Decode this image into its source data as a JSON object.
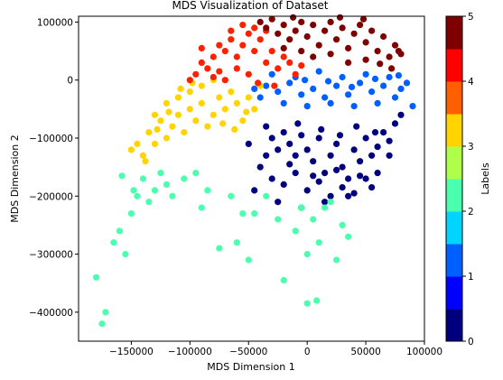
{
  "chart_data": {
    "type": "scatter",
    "title": "MDS Visualization of Dataset",
    "xlabel": "MDS Dimension 1",
    "ylabel": "MDS Dimension 2",
    "xlim": [
      -195000,
      100000
    ],
    "ylim": [
      -450000,
      110000
    ],
    "xticks": [
      -150000,
      -100000,
      -50000,
      0,
      50000,
      100000
    ],
    "yticks": [
      100000,
      0,
      -100000,
      -200000,
      -300000,
      -400000
    ],
    "grid": false,
    "colorbar": {
      "label": "Labels",
      "range": [
        0,
        5
      ],
      "ticks": [
        0,
        1,
        2,
        3,
        4,
        5
      ],
      "colors": [
        "#00007f",
        "#0000ff",
        "#005fff",
        "#00d4ff",
        "#4affad",
        "#adff4a",
        "#ffd400",
        "#ff5f00",
        "#ff0000",
        "#7f0000"
      ]
    },
    "series": [
      {
        "label_value": 0,
        "color": "#00007f",
        "points": [
          [
            -35000,
            -80000
          ],
          [
            -30000,
            -100000
          ],
          [
            -25000,
            -120000
          ],
          [
            -20000,
            -90000
          ],
          [
            -15000,
            -110000
          ],
          [
            -10000,
            -130000
          ],
          [
            -5000,
            -95000
          ],
          [
            0,
            -120000
          ],
          [
            5000,
            -140000
          ],
          [
            10000,
            -100000
          ],
          [
            15000,
            -160000
          ],
          [
            20000,
            -130000
          ],
          [
            25000,
            -110000
          ],
          [
            30000,
            -150000
          ],
          [
            35000,
            -170000
          ],
          [
            40000,
            -120000
          ],
          [
            45000,
            -140000
          ],
          [
            50000,
            -100000
          ],
          [
            55000,
            -130000
          ],
          [
            60000,
            -115000
          ],
          [
            65000,
            -90000
          ],
          [
            70000,
            -105000
          ],
          [
            75000,
            -75000
          ],
          [
            80000,
            -60000
          ],
          [
            -40000,
            -150000
          ],
          [
            -30000,
            -170000
          ],
          [
            -20000,
            -180000
          ],
          [
            -10000,
            -160000
          ],
          [
            0,
            -190000
          ],
          [
            10000,
            -175000
          ],
          [
            20000,
            -200000
          ],
          [
            30000,
            -185000
          ],
          [
            40000,
            -195000
          ],
          [
            50000,
            -170000
          ],
          [
            60000,
            -160000
          ],
          [
            -45000,
            -190000
          ],
          [
            -25000,
            -210000
          ],
          [
            -5000,
            -220000
          ],
          [
            15000,
            -210000
          ],
          [
            35000,
            -200000
          ],
          [
            -35000,
            -130000
          ],
          [
            -15000,
            -145000
          ],
          [
            5000,
            -165000
          ],
          [
            25000,
            -155000
          ],
          [
            45000,
            -165000
          ],
          [
            55000,
            -185000
          ],
          [
            -50000,
            -110000
          ],
          [
            70000,
            -130000
          ],
          [
            -8000,
            -75000
          ],
          [
            12000,
            -85000
          ],
          [
            28000,
            -95000
          ],
          [
            42000,
            -80000
          ],
          [
            58000,
            -90000
          ]
        ]
      },
      {
        "label_value": 1.25,
        "color": "#005fff",
        "points": [
          [
            -35000,
            -10000
          ],
          [
            -25000,
            -20000
          ],
          [
            -15000,
            -5000
          ],
          [
            -5000,
            -25000
          ],
          [
            5000,
            -15000
          ],
          [
            15000,
            -30000
          ],
          [
            25000,
            -10000
          ],
          [
            35000,
            -25000
          ],
          [
            45000,
            -5000
          ],
          [
            55000,
            -20000
          ],
          [
            65000,
            -10000
          ],
          [
            75000,
            -30000
          ],
          [
            -30000,
            10000
          ],
          [
            -10000,
            5000
          ],
          [
            10000,
            15000
          ],
          [
            30000,
            5000
          ],
          [
            50000,
            10000
          ],
          [
            70000,
            5000
          ],
          [
            80000,
            -15000
          ],
          [
            85000,
            -5000
          ],
          [
            -20000,
            -40000
          ],
          [
            0,
            -45000
          ],
          [
            20000,
            -40000
          ],
          [
            40000,
            -45000
          ],
          [
            60000,
            -40000
          ],
          [
            -40000,
            -30000
          ],
          [
            90000,
            -45000
          ],
          [
            -2000,
            0
          ],
          [
            18000,
            -2000
          ],
          [
            38000,
            -12000
          ],
          [
            58000,
            2000
          ],
          [
            78000,
            8000
          ],
          [
            -45000,
            -15000
          ]
        ]
      },
      {
        "label_value": 2.1,
        "color": "#4affad",
        "points": [
          [
            -175000,
            -420000
          ],
          [
            -180000,
            -340000
          ],
          [
            -172000,
            -400000
          ],
          [
            -165000,
            -280000
          ],
          [
            -160000,
            -260000
          ],
          [
            -155000,
            -300000
          ],
          [
            -150000,
            -230000
          ],
          [
            -145000,
            -200000
          ],
          [
            -140000,
            -170000
          ],
          [
            -135000,
            -210000
          ],
          [
            -130000,
            -190000
          ],
          [
            -125000,
            -160000
          ],
          [
            -120000,
            -180000
          ],
          [
            -115000,
            -200000
          ],
          [
            -105000,
            -170000
          ],
          [
            -95000,
            -160000
          ],
          [
            -85000,
            -190000
          ],
          [
            -75000,
            -290000
          ],
          [
            -60000,
            -280000
          ],
          [
            -50000,
            -310000
          ],
          [
            -45000,
            -230000
          ],
          [
            -35000,
            -200000
          ],
          [
            -25000,
            -240000
          ],
          [
            -20000,
            -345000
          ],
          [
            -10000,
            -260000
          ],
          [
            -5000,
            -220000
          ],
          [
            0,
            -300000
          ],
          [
            5000,
            -240000
          ],
          [
            10000,
            -280000
          ],
          [
            15000,
            -220000
          ],
          [
            20000,
            -210000
          ],
          [
            25000,
            -310000
          ],
          [
            30000,
            -250000
          ],
          [
            35000,
            -270000
          ],
          [
            -90000,
            -220000
          ],
          [
            -65000,
            -200000
          ],
          [
            -55000,
            -230000
          ],
          [
            0,
            -385000
          ],
          [
            8000,
            -380000
          ],
          [
            -158000,
            -165000
          ],
          [
            -148000,
            -190000
          ]
        ]
      },
      {
        "label_value": 3.1,
        "color": "#ffd400",
        "points": [
          [
            -145000,
            -110000
          ],
          [
            -140000,
            -130000
          ],
          [
            -135000,
            -90000
          ],
          [
            -130000,
            -110000
          ],
          [
            -125000,
            -70000
          ],
          [
            -120000,
            -100000
          ],
          [
            -115000,
            -80000
          ],
          [
            -110000,
            -60000
          ],
          [
            -105000,
            -90000
          ],
          [
            -100000,
            -50000
          ],
          [
            -95000,
            -70000
          ],
          [
            -90000,
            -40000
          ],
          [
            -85000,
            -80000
          ],
          [
            -80000,
            -60000
          ],
          [
            -75000,
            -30000
          ],
          [
            -70000,
            -50000
          ],
          [
            -65000,
            -20000
          ],
          [
            -60000,
            -40000
          ],
          [
            -55000,
            -70000
          ],
          [
            -50000,
            -30000
          ],
          [
            -45000,
            -50000
          ],
          [
            -40000,
            -10000
          ],
          [
            -100000,
            -20000
          ],
          [
            -110000,
            -30000
          ],
          [
            -120000,
            -40000
          ],
          [
            -130000,
            -60000
          ],
          [
            -90000,
            -10000
          ],
          [
            -80000,
            0
          ],
          [
            -150000,
            -120000
          ],
          [
            -138000,
            -140000
          ],
          [
            -128000,
            -85000
          ],
          [
            -118000,
            -55000
          ],
          [
            -108000,
            -15000
          ],
          [
            -98000,
            -5000
          ],
          [
            -72000,
            -75000
          ],
          [
            -62000,
            -85000
          ],
          [
            -52000,
            -55000
          ]
        ]
      },
      {
        "label_value": 4.1,
        "color": "#ff2000",
        "points": [
          [
            -100000,
            0
          ],
          [
            -95000,
            10000
          ],
          [
            -90000,
            30000
          ],
          [
            -85000,
            20000
          ],
          [
            -80000,
            40000
          ],
          [
            -75000,
            60000
          ],
          [
            -70000,
            50000
          ],
          [
            -65000,
            70000
          ],
          [
            -60000,
            40000
          ],
          [
            -55000,
            60000
          ],
          [
            -50000,
            80000
          ],
          [
            -45000,
            50000
          ],
          [
            -40000,
            70000
          ],
          [
            -35000,
            30000
          ],
          [
            -30000,
            50000
          ],
          [
            -25000,
            20000
          ],
          [
            -20000,
            40000
          ],
          [
            -15000,
            30000
          ],
          [
            -10000,
            10000
          ],
          [
            -5000,
            25000
          ],
          [
            -50000,
            10000
          ],
          [
            -60000,
            20000
          ],
          [
            -70000,
            0
          ],
          [
            -80000,
            5000
          ],
          [
            -45000,
            90000
          ],
          [
            -55000,
            95000
          ],
          [
            -65000,
            85000
          ],
          [
            -35000,
            85000
          ],
          [
            -90000,
            55000
          ],
          [
            -75000,
            15000
          ],
          [
            -42000,
            -5000
          ],
          [
            -28000,
            -10000
          ]
        ]
      },
      {
        "label_value": 4.9,
        "color": "#7f0000",
        "points": [
          [
            -40000,
            100000
          ],
          [
            -35000,
            90000
          ],
          [
            -30000,
            105000
          ],
          [
            -25000,
            80000
          ],
          [
            -20000,
            95000
          ],
          [
            -15000,
            70000
          ],
          [
            -10000,
            85000
          ],
          [
            -5000,
            100000
          ],
          [
            0,
            75000
          ],
          [
            5000,
            95000
          ],
          [
            10000,
            60000
          ],
          [
            15000,
            85000
          ],
          [
            20000,
            100000
          ],
          [
            25000,
            70000
          ],
          [
            30000,
            90000
          ],
          [
            35000,
            55000
          ],
          [
            40000,
            80000
          ],
          [
            45000,
            95000
          ],
          [
            50000,
            65000
          ],
          [
            55000,
            85000
          ],
          [
            60000,
            50000
          ],
          [
            65000,
            75000
          ],
          [
            70000,
            40000
          ],
          [
            75000,
            60000
          ],
          [
            5000,
            40000
          ],
          [
            20000,
            45000
          ],
          [
            35000,
            30000
          ],
          [
            50000,
            35000
          ],
          [
            -20000,
            55000
          ],
          [
            -5000,
            50000
          ],
          [
            80000,
            45000
          ],
          [
            72000,
            20000
          ],
          [
            62000,
            28000
          ],
          [
            -12000,
            108000
          ],
          [
            28000,
            108000
          ],
          [
            48000,
            105000
          ],
          [
            78000,
            50000
          ]
        ]
      }
    ]
  }
}
